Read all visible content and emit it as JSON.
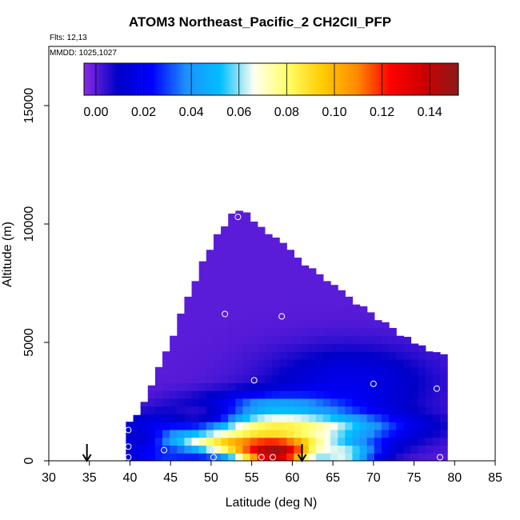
{
  "chart_data": {
    "type": "heatmap",
    "title": "ATOM3 Northeast_Pacific_2 CH2CII_PFP",
    "flights_label": "Flts: 12,13",
    "dates_label": "MMDD: 1025,1027",
    "xlabel": "Latitude (deg N)",
    "ylabel": "Altitude (m)",
    "xlim": [
      30,
      85
    ],
    "ylim": [
      0,
      17500
    ],
    "xticks": [
      30,
      35,
      40,
      45,
      50,
      55,
      60,
      65,
      70,
      75,
      80,
      85
    ],
    "yticks": [
      0,
      5000,
      10000,
      15000
    ],
    "colorbar": {
      "min": -0.005,
      "max": 0.152,
      "ticks": [
        0.0,
        0.02,
        0.04,
        0.06,
        0.08,
        0.1,
        0.12,
        0.14
      ],
      "tick_labels": [
        "0.00",
        "0.02",
        "0.04",
        "0.06",
        "0.08",
        "0.10",
        "0.12",
        "0.14"
      ],
      "colors": [
        "#8a2be2",
        "#0000c8",
        "#0000ff",
        "#1e90ff",
        "#00bfff",
        "#fffff0",
        "#ffff66",
        "#ffcc00",
        "#ff8c00",
        "#ff0000",
        "#cc0000",
        "#8b1a1a"
      ]
    },
    "filled_region": {
      "profile": [
        [
          39.5,
          0
        ],
        [
          39.5,
          1500
        ],
        [
          41,
          1800
        ],
        [
          42,
          2500
        ],
        [
          43,
          3300
        ],
        [
          44,
          4200
        ],
        [
          45,
          5000
        ],
        [
          46,
          5800
        ],
        [
          47,
          6800
        ],
        [
          48,
          7500
        ],
        [
          49,
          8300
        ],
        [
          50,
          9000
        ],
        [
          51,
          9600
        ],
        [
          52,
          10000
        ],
        [
          53,
          10500
        ],
        [
          54,
          10500
        ],
        [
          55,
          10000
        ],
        [
          57,
          9500
        ],
        [
          59,
          9000
        ],
        [
          61,
          8400
        ],
        [
          63,
          7800
        ],
        [
          65,
          7300
        ],
        [
          67,
          6800
        ],
        [
          69,
          6300
        ],
        [
          71,
          5800
        ],
        [
          73,
          5300
        ],
        [
          75,
          4900
        ],
        [
          77,
          4500
        ],
        [
          79,
          4300
        ],
        [
          79.5,
          4200
        ],
        [
          79.5,
          0
        ]
      ],
      "background_value": 0.0
    },
    "features": [
      {
        "lat": 67,
        "alt": 3300,
        "dlat": 10,
        "dalt": 1500,
        "value": 0.018
      },
      {
        "lat": 58,
        "alt": 2300,
        "dlat": 9,
        "dalt": 600,
        "value": 0.045
      },
      {
        "lat": 58,
        "alt": 1500,
        "dlat": 13,
        "dalt": 550,
        "value": 0.08
      },
      {
        "lat": 55,
        "alt": 800,
        "dlat": 12,
        "dalt": 600,
        "value": 0.1
      },
      {
        "lat": 58,
        "alt": 350,
        "dlat": 4.5,
        "dalt": 500,
        "value": 0.155
      },
      {
        "lat": 66,
        "alt": 300,
        "dlat": 4,
        "dalt": 400,
        "value": 0.07
      },
      {
        "lat": 44.5,
        "alt": 300,
        "dlat": 4,
        "dalt": 400,
        "value": 0.03
      },
      {
        "lat": 41,
        "alt": 1000,
        "dlat": 3,
        "dalt": 600,
        "value": 0.012
      },
      {
        "lat": 48,
        "alt": 2000,
        "dlat": 5,
        "dalt": 700,
        "value": 0.005
      }
    ],
    "samples": [
      {
        "lat": 53.3,
        "alt": 10300
      },
      {
        "lat": 51.7,
        "alt": 6200
      },
      {
        "lat": 58.7,
        "alt": 6100
      },
      {
        "lat": 55.3,
        "alt": 3400
      },
      {
        "lat": 70.0,
        "alt": 3250
      },
      {
        "lat": 79.7,
        "alt": 4200
      },
      {
        "lat": 77.8,
        "alt": 3050
      },
      {
        "lat": 39.8,
        "alt": 1300
      },
      {
        "lat": 39.8,
        "alt": 600
      },
      {
        "lat": 39.8,
        "alt": 150
      },
      {
        "lat": 44.2,
        "alt": 450
      },
      {
        "lat": 50.3,
        "alt": 450
      },
      {
        "lat": 50.3,
        "alt": 150
      },
      {
        "lat": 56.2,
        "alt": 150
      },
      {
        "lat": 57.6,
        "alt": 150
      },
      {
        "lat": 78.2,
        "alt": 150
      }
    ],
    "markers": [
      {
        "type": "down-arrow",
        "lat": 34.7
      },
      {
        "type": "down-arrow",
        "lat": 61.2
      }
    ]
  }
}
